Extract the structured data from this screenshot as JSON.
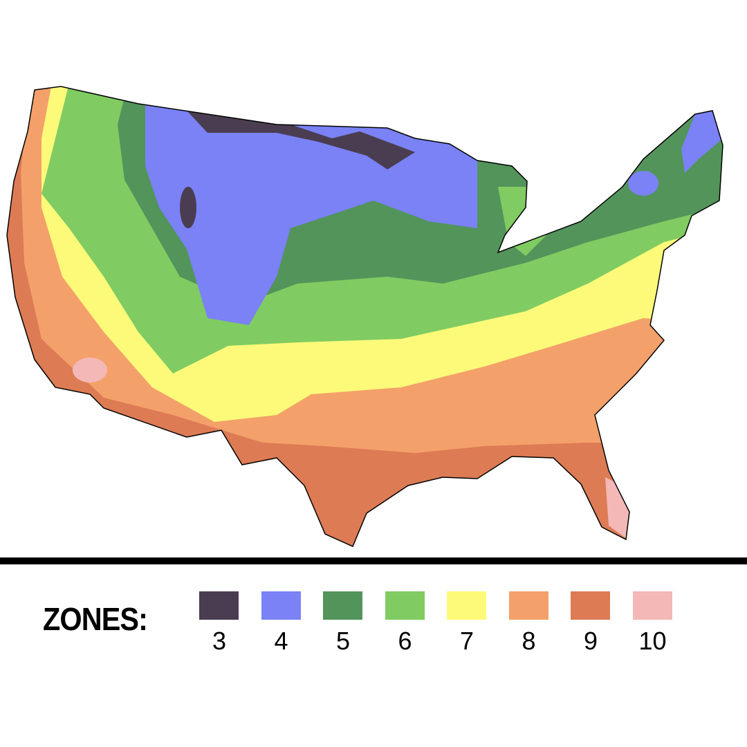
{
  "legend": {
    "title": "ZONES:",
    "zones": [
      {
        "label": "3",
        "color": "#4a3d51"
      },
      {
        "label": "4",
        "color": "#7a82f5"
      },
      {
        "label": "5",
        "color": "#53945b"
      },
      {
        "label": "6",
        "color": "#80cc62"
      },
      {
        "label": "7",
        "color": "#fdfa7a"
      },
      {
        "label": "8",
        "color": "#f4a06a"
      },
      {
        "label": "9",
        "color": "#dd7b55"
      },
      {
        "label": "10",
        "color": "#f4b8b6"
      }
    ]
  },
  "map": {
    "region": "contiguous United States",
    "outline_color": "#000000"
  }
}
